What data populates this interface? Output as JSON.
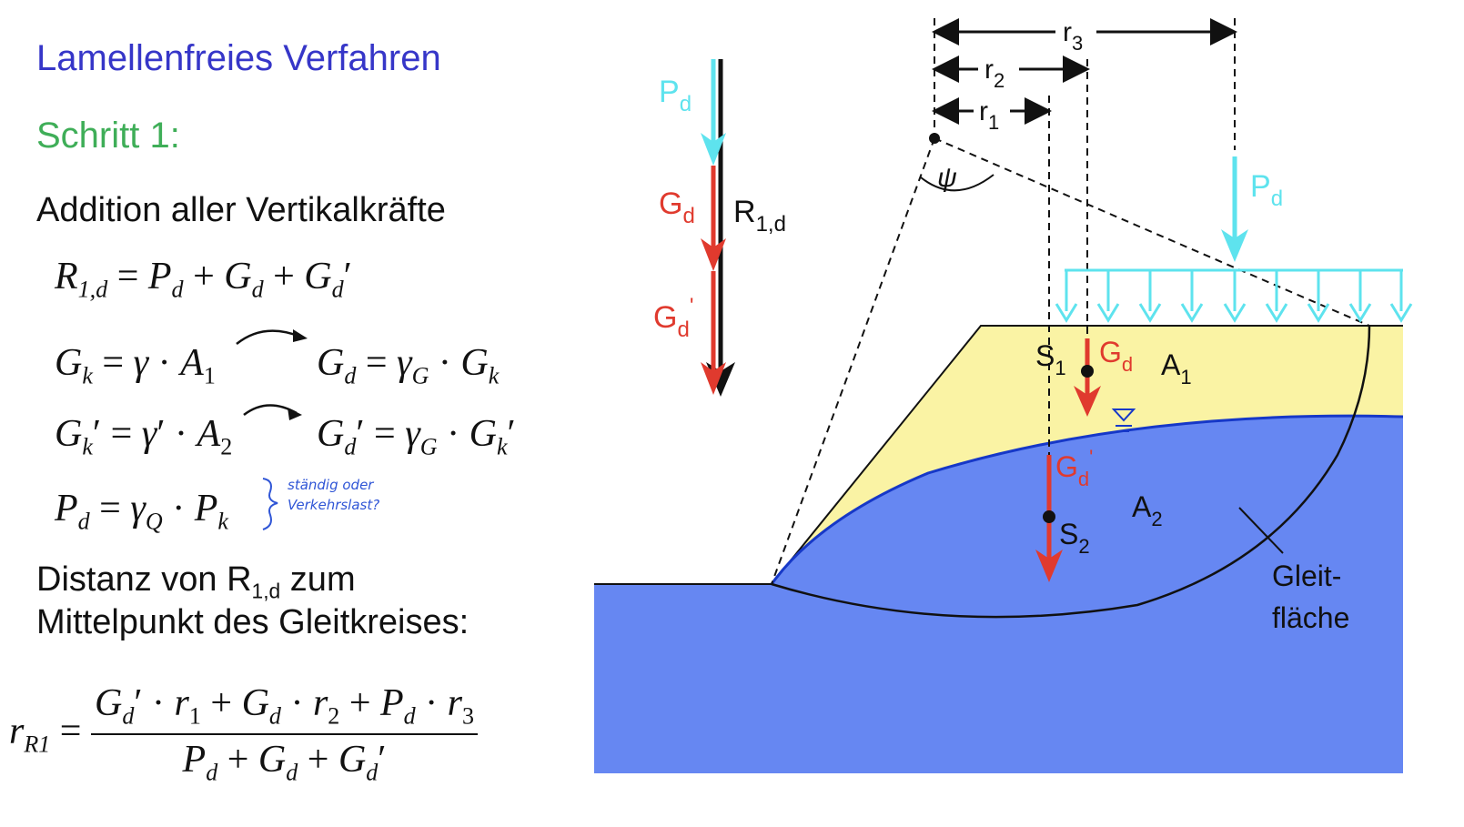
{
  "text": {
    "subtitle": "Lamellenfreies Verfahren",
    "step": "Schritt 1:",
    "addition": "Addition aller Vertikalkräfte",
    "distance_line1": "Distanz von R",
    "distance_line1_sub": "1,d",
    "distance_line1_end": " zum",
    "distance_line2": "Mittelpunkt des Gleitkreises:",
    "handnote_line1": "ständig oder",
    "handnote_line2": "Verkehrslast?"
  },
  "equations": {
    "eq_R": "R₁,d = P_d + G_d + G_d'",
    "eq_Gk": "G_k = γ · A₁ → G_d = γ_G · G_k",
    "eq_Gk2": "G_k' = γ' · A₂ → G_d' = γ_G · G_k'",
    "eq_Pd": "P_d = γ_Q · P_k",
    "eq_r": "r_R1 = (G_d'·r₁ + G_d·r₂ + P_d·r₃) / (P_d + G_d + G_d')"
  },
  "figure": {
    "label_Pd_vec": "P",
    "label_Gd_vec": "G",
    "label_Gd2_vec": "G",
    "label_R_main": "R",
    "label_R_sub": "1,d",
    "sub_d": "d",
    "label_r1": "r",
    "label_r2": "r",
    "label_r3": "r",
    "sub_1": "1",
    "sub_2": "2",
    "sub_3": "3",
    "label_psi": "ψ",
    "label_Pd_load": "P",
    "label_S1": "S",
    "label_S2": "S",
    "label_Gd_slope": "G",
    "label_Gd2_slope": "G",
    "label_A1": "A",
    "label_A2": "A",
    "label_gleit_1": "Gleit-",
    "label_gleit_2": "fläche",
    "prime": "'"
  },
  "colors": {
    "cyan": "#5ee3ee",
    "red": "#e03a2e",
    "blue_soil": "#6687f2",
    "yellow_soil": "#faf3a4",
    "water_line": "#1638c8",
    "subtitle": "#3636c8",
    "step": "#3fae58"
  }
}
